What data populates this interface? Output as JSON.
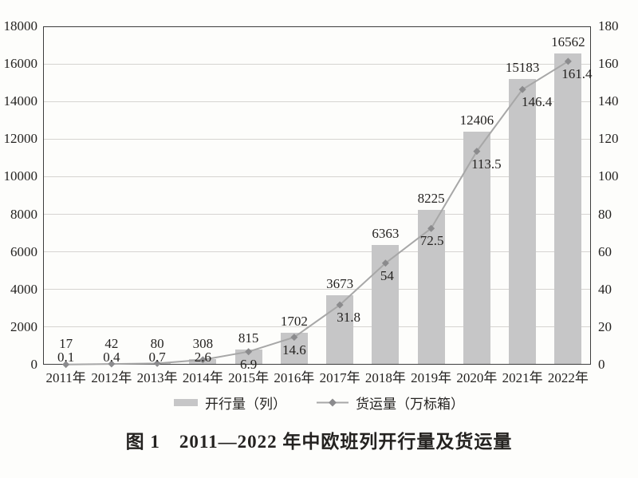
{
  "chart_data": {
    "type": "bar",
    "subtype": "bar-line-combo",
    "title": "图 1　2011—2022 年中欧班列开行量及货运量",
    "categories": [
      "2011年",
      "2012年",
      "2013年",
      "2014年",
      "2015年",
      "2016年",
      "2017年",
      "2018年",
      "2019年",
      "2020年",
      "2021年",
      "2022年"
    ],
    "series": [
      {
        "name": "开行量（列）",
        "type": "bar",
        "axis": "left",
        "values": [
          17,
          42,
          80,
          308,
          815,
          1702,
          3673,
          6363,
          8225,
          12406,
          15183,
          16562
        ],
        "labels": [
          "17",
          "42",
          "80",
          "308",
          "815",
          "1702",
          "3673",
          "6363",
          "8225",
          "12406",
          "15183",
          "16562"
        ]
      },
      {
        "name": "货运量（万标箱）",
        "type": "line",
        "axis": "right",
        "values": [
          0.1,
          0.4,
          0.7,
          2.6,
          6.9,
          14.6,
          31.8,
          54,
          72.5,
          113.5,
          146.4,
          161.4
        ],
        "labels": [
          "0.1",
          "0.4",
          "0.7",
          "2.6",
          "6.9",
          "14.6",
          "31.8",
          "54",
          "72.5",
          "113.5",
          "146.4",
          "161.4"
        ]
      }
    ],
    "left_axis": {
      "min": 0,
      "max": 18000,
      "step": 2000
    },
    "right_axis": {
      "min": 0,
      "max": 180,
      "step": 20
    },
    "grid": true,
    "legend_position": "bottom",
    "colors": {
      "bar": "#c6c6c7",
      "line": "#a7a7a7",
      "marker": "#8b8b8d",
      "gridline": "#d6d4d1",
      "axis_border": "#3d3d3d",
      "text": "#242220",
      "background": "#fdfdfb"
    }
  }
}
